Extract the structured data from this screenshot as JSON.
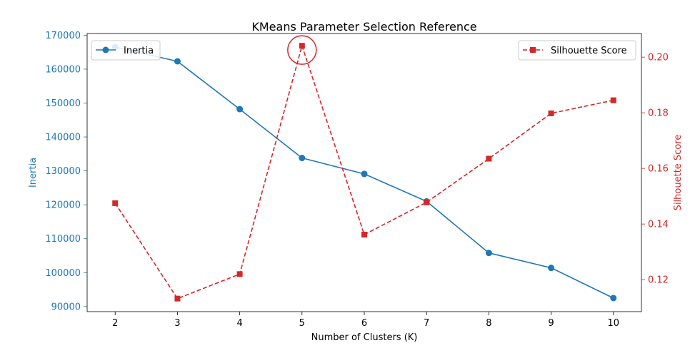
{
  "chart_data": {
    "type": "line",
    "title": "KMeans Parameter Selection Reference",
    "xlabel": "Number of Clusters (K)",
    "x": [
      2,
      3,
      4,
      5,
      6,
      7,
      8,
      9,
      10
    ],
    "xticks": [
      "2",
      "3",
      "4",
      "5",
      "6",
      "7",
      "8",
      "9",
      "10"
    ],
    "xlim": [
      1.55,
      10.45
    ],
    "y_left": {
      "label": "Inertia",
      "color": "#1f77b4",
      "ylim": [
        88500,
        170500
      ],
      "ticks": [
        "90000",
        "100000",
        "110000",
        "120000",
        "130000",
        "140000",
        "150000",
        "160000",
        "170000"
      ],
      "tick_values": [
        90000,
        100000,
        110000,
        120000,
        130000,
        140000,
        150000,
        160000,
        170000
      ]
    },
    "y_right": {
      "label": "Silhouette Score",
      "color": "#d62728",
      "ylim": [
        0.1085,
        0.2085
      ],
      "ticks": [
        "0.12",
        "0.14",
        "0.16",
        "0.18",
        "0.20"
      ],
      "tick_values": [
        0.12,
        0.14,
        0.16,
        0.18,
        0.2
      ]
    },
    "series": [
      {
        "name": "Inertia",
        "axis": "left",
        "color": "#1f77b4",
        "marker": "circle",
        "linestyle": "solid",
        "values": [
          166500,
          162300,
          148200,
          133800,
          129100,
          121000,
          105800,
          101400,
          92500
        ]
      },
      {
        "name": "Silhouette Score",
        "axis": "right",
        "color": "#d62728",
        "marker": "square",
        "linestyle": "dashed",
        "values": [
          0.1475,
          0.1132,
          0.122,
          0.2041,
          0.1362,
          0.1478,
          0.1635,
          0.1798,
          0.1845
        ]
      }
    ],
    "annotation": {
      "type": "circle",
      "x": 5,
      "series": "Silhouette Score",
      "color": "#d62728"
    },
    "legends": [
      {
        "placement": "upper-left",
        "entries": [
          "Inertia"
        ]
      },
      {
        "placement": "upper-right",
        "entries": [
          "Silhouette Score"
        ]
      }
    ],
    "grid": false
  }
}
